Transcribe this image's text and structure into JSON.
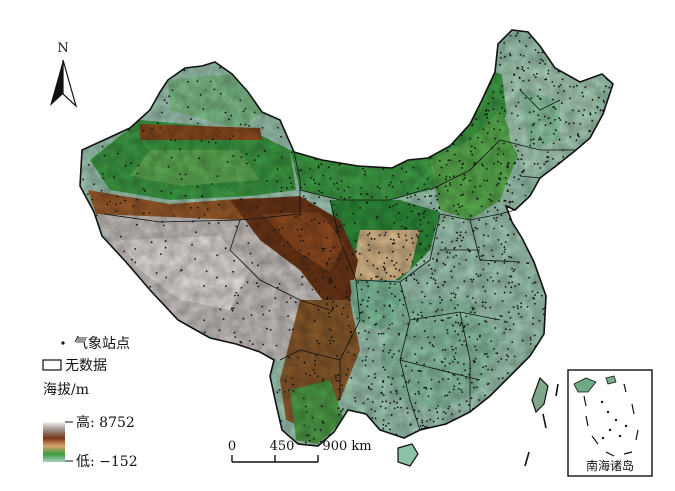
{
  "north_arrow": {
    "label": "N"
  },
  "legend": {
    "station_label": "气象站点",
    "nodata_label": "无数据",
    "elevation_title": "海拔/m",
    "high_label": "高: 8752",
    "low_label": "低: −152"
  },
  "scale_bar": {
    "tick_labels": [
      "0",
      "450",
      "900 km"
    ]
  },
  "inset": {
    "label": "南海诸岛"
  },
  "colors": {
    "low_elev": "#9fc9b4",
    "plain_green": "#3f9f45",
    "dark_green": "#1f7a34",
    "tan": "#d9b98a",
    "brown": "#8a4a1e",
    "dark_brown": "#5a2a10",
    "plateau_grey": "#c9c3bf",
    "border": "#111111"
  }
}
